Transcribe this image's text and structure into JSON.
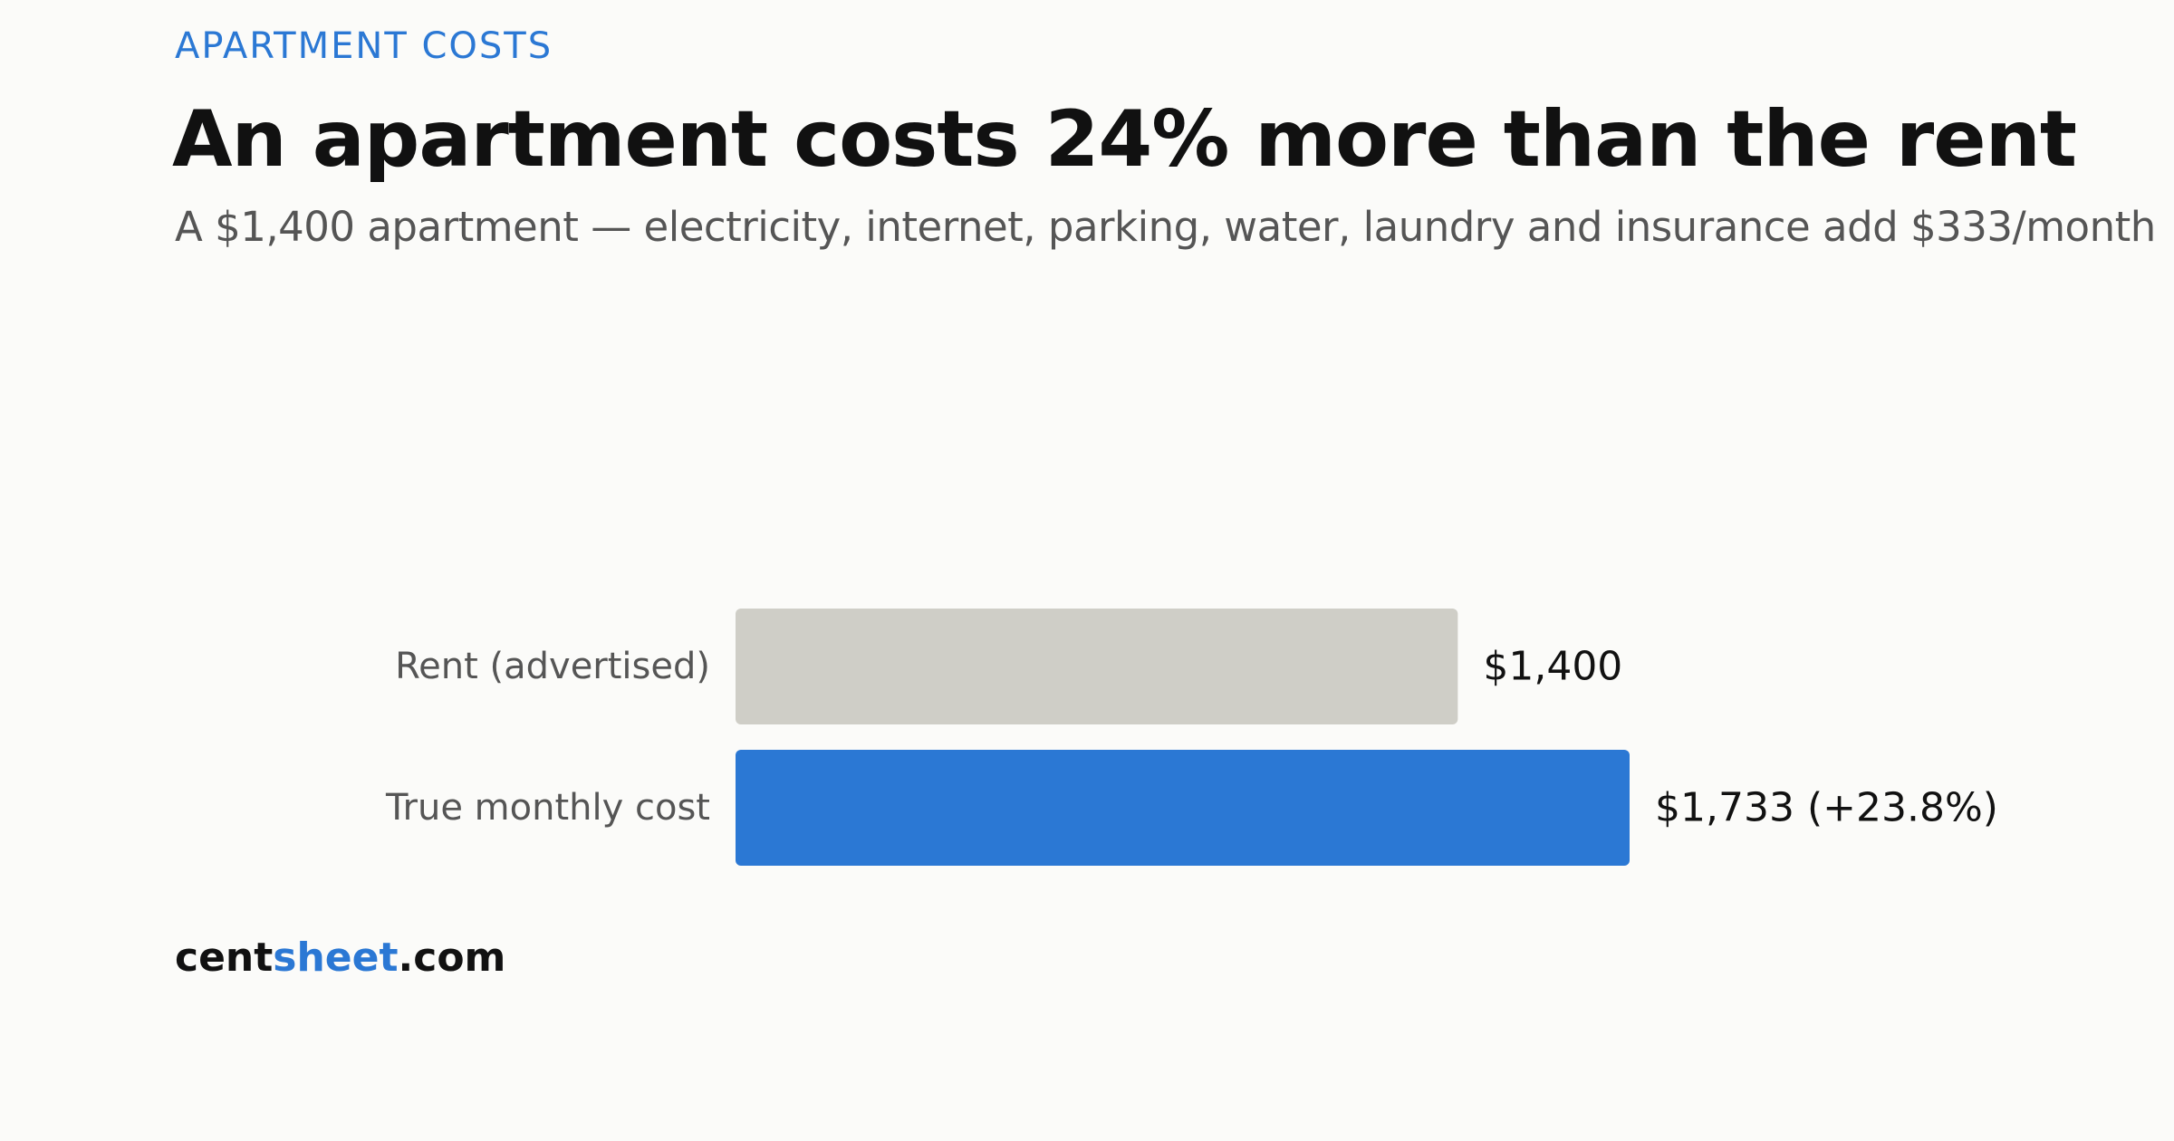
{
  "header": {
    "kicker": "APARTMENT COSTS",
    "title": "An apartment costs 24% more than the rent",
    "subtitle": "A $1,400 apartment — electricity, internet, parking, water, laundry and insurance add $333/month"
  },
  "chart_data": {
    "type": "bar",
    "orientation": "horizontal",
    "categories": [
      "Rent (advertised)",
      "True monthly cost"
    ],
    "values": [
      1400,
      1733
    ],
    "value_labels": [
      "$1,400",
      "$1,733 (+23.8%)"
    ],
    "colors": [
      "#cfcec7",
      "#2b78d4"
    ],
    "xlim": [
      0,
      1733
    ],
    "grid": false,
    "legend": "none"
  },
  "footer": {
    "brand_part1": "cent",
    "brand_part2": "sheet",
    "brand_part3": ".com",
    "brand_accent_color": "#2b78d4"
  }
}
